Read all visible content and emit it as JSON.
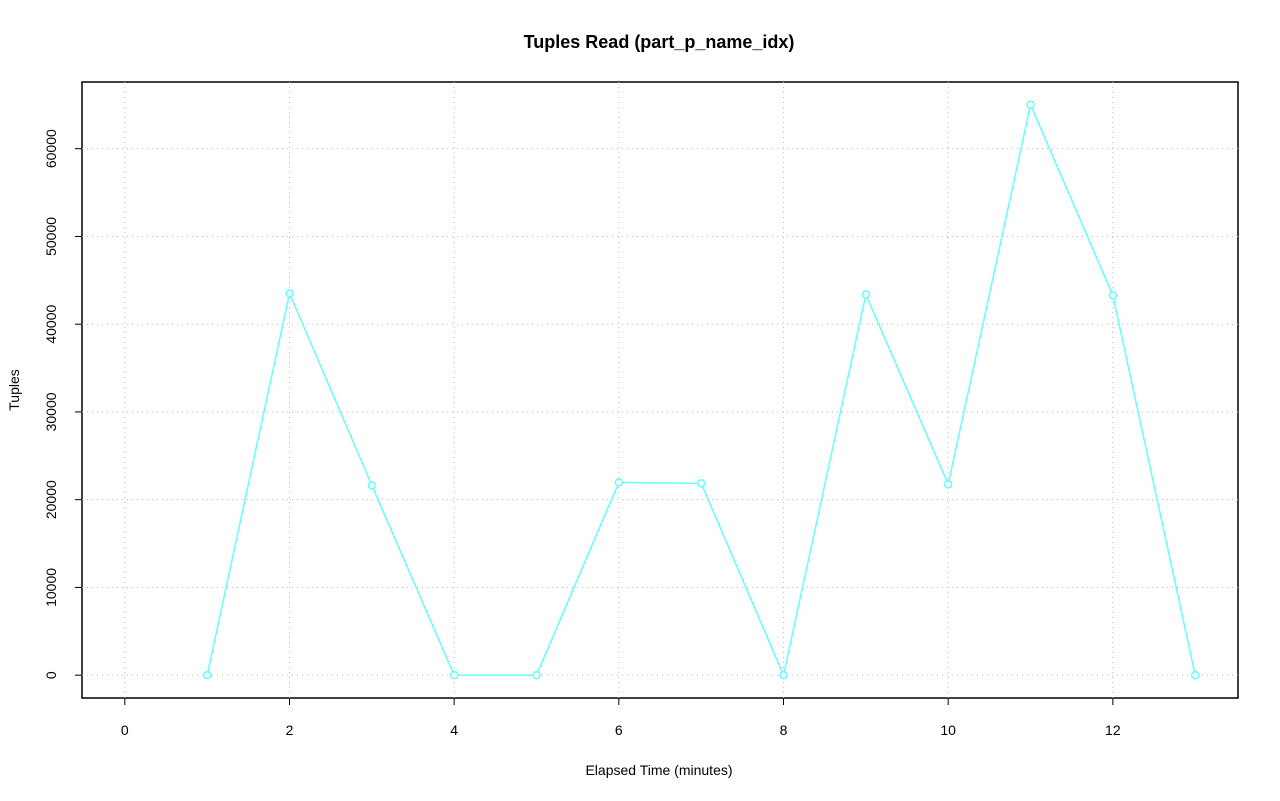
{
  "chart_data": {
    "type": "line",
    "title": "Tuples Read (part_p_name_idx)",
    "x_label": "Elapsed Time (minutes)",
    "y_label": "Tuples",
    "x": [
      1,
      2,
      3,
      4,
      5,
      6,
      7,
      8,
      9,
      10,
      11,
      12,
      13
    ],
    "series": [
      {
        "name": "part_p_name_idx",
        "color": "#66ffff",
        "values": [
          0,
          43500,
          21630,
          0,
          0,
          21970,
          21860,
          0,
          43380,
          21750,
          65010,
          43270,
          0
        ]
      }
    ],
    "xlim": [
      -0.52,
      13.52
    ],
    "xticks": [
      0,
      2,
      4,
      6,
      8,
      10,
      12
    ],
    "ylim": [
      -2600,
      67600
    ],
    "yticks": [
      0,
      10000,
      20000,
      30000,
      40000,
      50000,
      60000
    ],
    "grid": true
  }
}
